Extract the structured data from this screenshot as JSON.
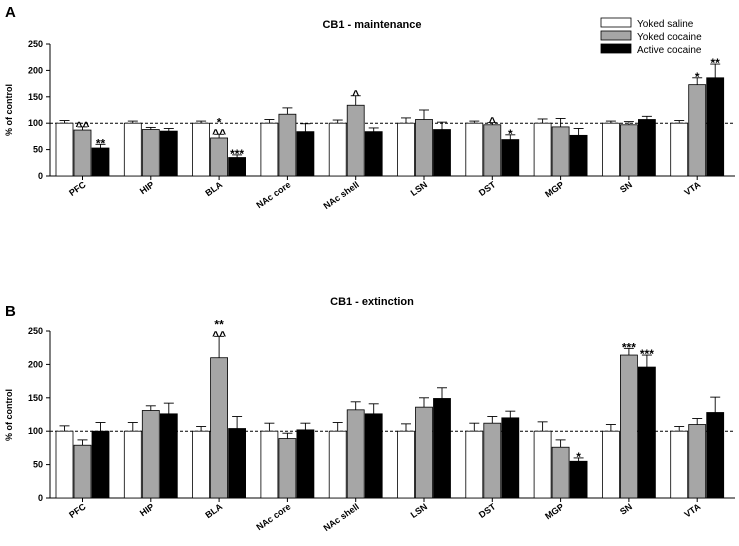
{
  "chart_data": [
    {
      "type": "bar",
      "panel_label": "A",
      "title": "CB1 - maintenance",
      "xlabel": "",
      "ylabel": "% of control",
      "ylim": [
        0,
        250
      ],
      "yticks": [
        "0",
        "50",
        "100",
        "150",
        "200",
        "250"
      ],
      "reference_line": 100,
      "grid": false,
      "legend_position": "top-right",
      "categories": [
        "PFC",
        "HIP",
        "BLA",
        "NAc core",
        "NAc shell",
        "LSN",
        "DST",
        "MGP",
        "SN",
        "VTA"
      ],
      "series": [
        {
          "name": "Yoked saline",
          "color": "#ffffff",
          "values": [
            100,
            100,
            100,
            100,
            100,
            100,
            100,
            100,
            100,
            100
          ],
          "errors": [
            5,
            4,
            4,
            7,
            6,
            10,
            4,
            8,
            4,
            5
          ]
        },
        {
          "name": "Yoked cocaine",
          "color": "#a6a6a6",
          "values": [
            87,
            88,
            72,
            117,
            134,
            107,
            97,
            93,
            97,
            173
          ],
          "errors": [
            6,
            4,
            7,
            12,
            18,
            18,
            4,
            16,
            6,
            13
          ]
        },
        {
          "name": "Active cocaine",
          "color": "#000000",
          "values": [
            53,
            85,
            35,
            84,
            84,
            88,
            69,
            77,
            107,
            186
          ],
          "errors": [
            7,
            5,
            5,
            15,
            7,
            14,
            9,
            13,
            6,
            26
          ]
        }
      ],
      "annotations": [
        {
          "category": "PFC",
          "series": 1,
          "text": "^^"
        },
        {
          "category": "PFC",
          "series": 2,
          "text": "**"
        },
        {
          "category": "BLA",
          "series": 1,
          "text": "^^"
        },
        {
          "category": "BLA",
          "series": 1,
          "text": "*"
        },
        {
          "category": "BLA",
          "series": 2,
          "text": "***"
        },
        {
          "category": "NAc shell",
          "series": 1,
          "text": "^"
        },
        {
          "category": "DST",
          "series": 1,
          "text": "^"
        },
        {
          "category": "DST",
          "series": 2,
          "text": "*"
        },
        {
          "category": "VTA",
          "series": 1,
          "text": "*"
        },
        {
          "category": "VTA",
          "series": 2,
          "text": "**"
        }
      ]
    },
    {
      "type": "bar",
      "panel_label": "B",
      "title": "CB1 - extinction",
      "xlabel": "",
      "ylabel": "% of control",
      "ylim": [
        0,
        250
      ],
      "yticks": [
        "0",
        "50",
        "100",
        "150",
        "200",
        "250"
      ],
      "reference_line": 100,
      "grid": false,
      "legend_position": "none",
      "categories": [
        "PFC",
        "HIP",
        "BLA",
        "NAc core",
        "NAc shell",
        "LSN",
        "DST",
        "MGP",
        "SN",
        "VTA"
      ],
      "series": [
        {
          "name": "Yoked saline",
          "color": "#ffffff",
          "values": [
            100,
            100,
            100,
            100,
            100,
            100,
            100,
            100,
            100,
            100
          ],
          "errors": [
            8,
            13,
            7,
            12,
            13,
            11,
            12,
            14,
            10,
            7
          ]
        },
        {
          "name": "Yoked cocaine",
          "color": "#a6a6a6",
          "values": [
            79,
            131,
            210,
            89,
            132,
            136,
            112,
            76,
            214,
            110
          ],
          "errors": [
            8,
            7,
            32,
            8,
            12,
            14,
            10,
            11,
            10,
            9
          ]
        },
        {
          "name": "Active cocaine",
          "color": "#000000",
          "values": [
            100,
            126,
            104,
            102,
            126,
            149,
            120,
            55,
            196,
            128
          ],
          "errors": [
            13,
            16,
            18,
            10,
            15,
            16,
            10,
            5,
            18,
            23
          ]
        }
      ],
      "annotations": [
        {
          "category": "BLA",
          "series": 1,
          "text": "^^"
        },
        {
          "category": "BLA",
          "series": 1,
          "text": "**"
        },
        {
          "category": "MGP",
          "series": 2,
          "text": "*"
        },
        {
          "category": "SN",
          "series": 1,
          "text": "***"
        },
        {
          "category": "SN",
          "series": 2,
          "text": "***"
        }
      ]
    }
  ]
}
